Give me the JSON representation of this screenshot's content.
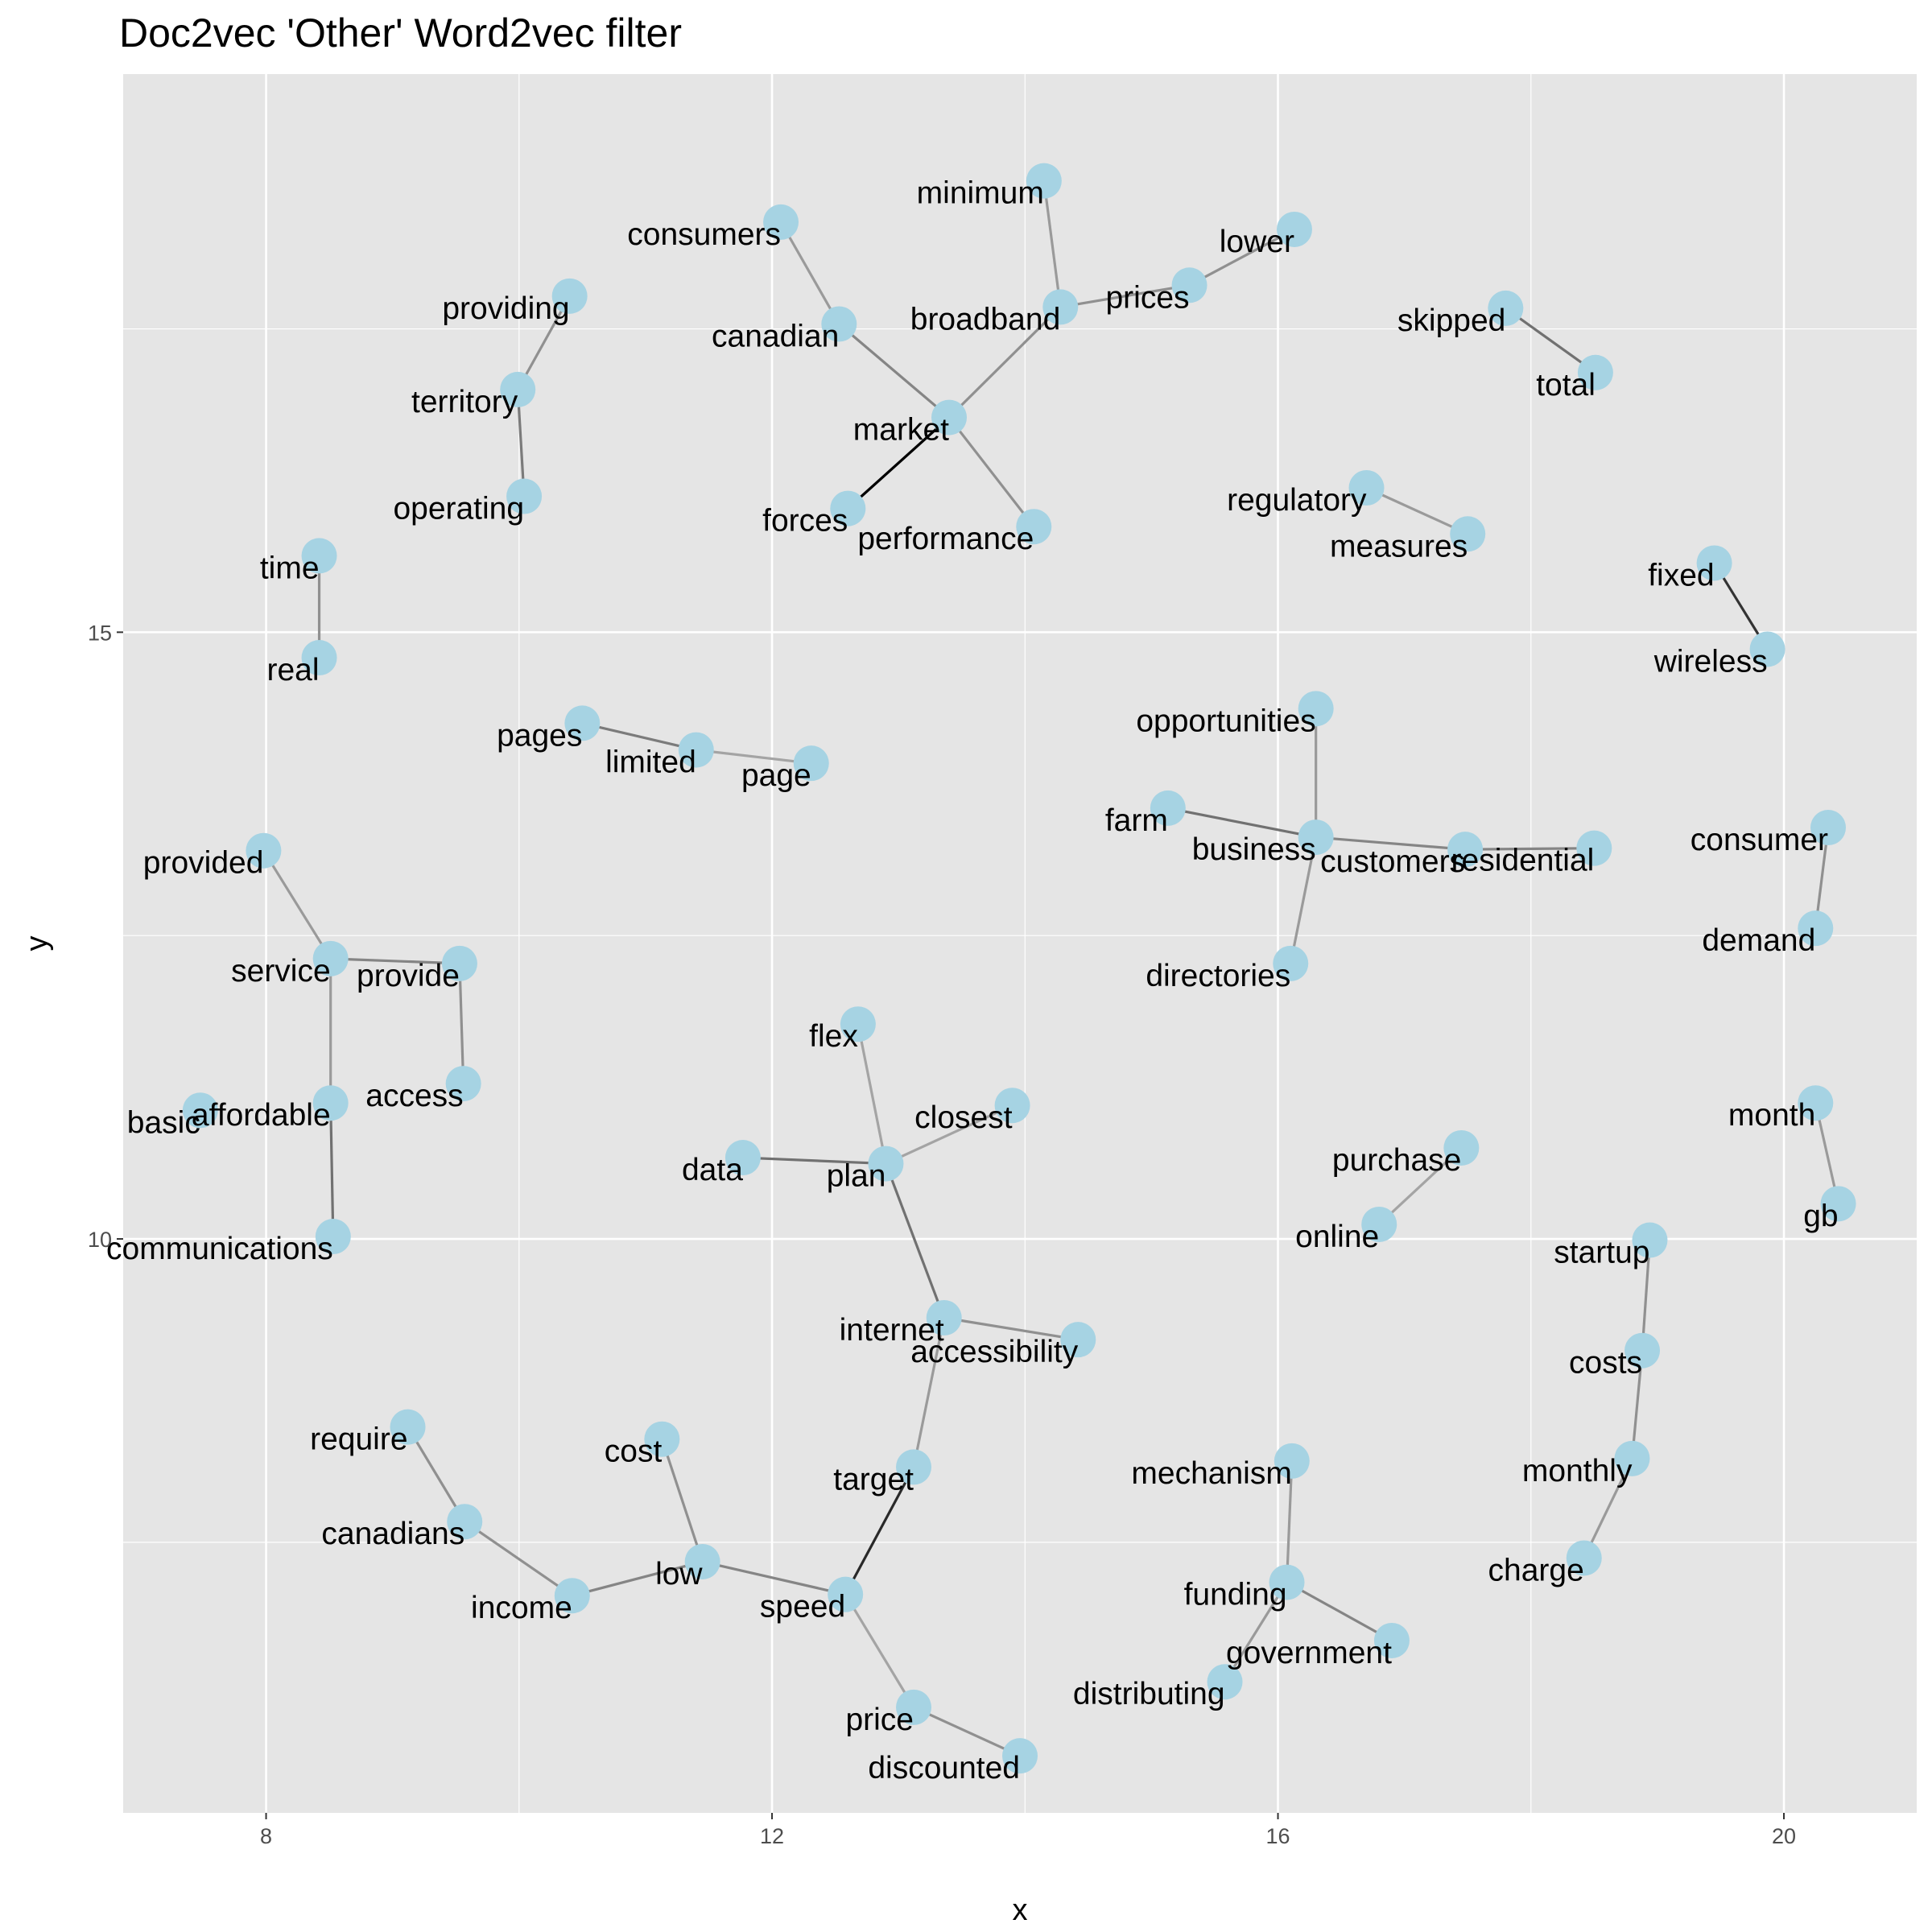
{
  "chart_data": {
    "type": "scatter",
    "title": "Doc2vec 'Other' Word2vec filter",
    "xlabel": "x",
    "ylabel": "y",
    "xlim": [
      6.87,
      21.05
    ],
    "ylim": [
      5.27,
      19.6
    ],
    "x_ticks": [
      8,
      12,
      16,
      20
    ],
    "x_tick_labels": [
      "8",
      "12",
      "16",
      "20"
    ],
    "y_ticks": [
      10,
      15
    ],
    "y_tick_labels": [
      "10",
      "15"
    ],
    "x_minor_ticks": [
      10,
      14,
      18
    ],
    "y_minor_ticks": [
      7.5,
      12.5,
      17.5
    ],
    "grid": true,
    "background": "#e5e5e5",
    "grid_color": "#ffffff",
    "point_color": "#a6d3e3",
    "points": [
      {
        "label": "consumers",
        "x": 12.07,
        "y": 18.38
      },
      {
        "label": "canadian",
        "x": 12.53,
        "y": 17.54
      },
      {
        "label": "market",
        "x": 13.4,
        "y": 16.77
      },
      {
        "label": "forces",
        "x": 12.6,
        "y": 16.02
      },
      {
        "label": "performance",
        "x": 14.07,
        "y": 15.87
      },
      {
        "label": "broadband",
        "x": 14.28,
        "y": 17.68
      },
      {
        "label": "minimum",
        "x": 14.15,
        "y": 18.72
      },
      {
        "label": "prices",
        "x": 15.3,
        "y": 17.86
      },
      {
        "label": "lower",
        "x": 16.13,
        "y": 18.32
      },
      {
        "label": "providing",
        "x": 10.4,
        "y": 17.77
      },
      {
        "label": "territory",
        "x": 9.99,
        "y": 17.0
      },
      {
        "label": "operating",
        "x": 10.04,
        "y": 16.12
      },
      {
        "label": "skipped",
        "x": 17.8,
        "y": 17.67
      },
      {
        "label": "total",
        "x": 18.51,
        "y": 17.14
      },
      {
        "label": "regulatory",
        "x": 16.7,
        "y": 16.19
      },
      {
        "label": "measures",
        "x": 17.5,
        "y": 15.81
      },
      {
        "label": "fixed",
        "x": 19.45,
        "y": 15.57
      },
      {
        "label": "wireless",
        "x": 19.87,
        "y": 14.86
      },
      {
        "label": "time",
        "x": 8.42,
        "y": 15.63
      },
      {
        "label": "real",
        "x": 8.42,
        "y": 14.79
      },
      {
        "label": "pages",
        "x": 10.5,
        "y": 14.25
      },
      {
        "label": "limited",
        "x": 11.4,
        "y": 14.03
      },
      {
        "label": "page",
        "x": 12.31,
        "y": 13.92
      },
      {
        "label": "opportunities",
        "x": 16.3,
        "y": 14.37
      },
      {
        "label": "farm",
        "x": 15.13,
        "y": 13.55
      },
      {
        "label": "business",
        "x": 16.3,
        "y": 13.31
      },
      {
        "label": "customers",
        "x": 17.48,
        "y": 13.21
      },
      {
        "label": "residential",
        "x": 18.5,
        "y": 13.22
      },
      {
        "label": "directories",
        "x": 16.1,
        "y": 12.27
      },
      {
        "label": "consumer",
        "x": 20.35,
        "y": 13.39
      },
      {
        "label": "demand",
        "x": 20.25,
        "y": 12.56
      },
      {
        "label": "provided",
        "x": 7.98,
        "y": 13.2
      },
      {
        "label": "service",
        "x": 8.51,
        "y": 12.31
      },
      {
        "label": "provide",
        "x": 9.53,
        "y": 12.27
      },
      {
        "label": "access",
        "x": 9.56,
        "y": 11.28
      },
      {
        "label": "affordable",
        "x": 8.51,
        "y": 11.12
      },
      {
        "label": "basic",
        "x": 7.48,
        "y": 11.06
      },
      {
        "label": "communications",
        "x": 8.53,
        "y": 10.02
      },
      {
        "label": "flex",
        "x": 12.68,
        "y": 11.77
      },
      {
        "label": "closest",
        "x": 13.9,
        "y": 11.1
      },
      {
        "label": "data",
        "x": 11.77,
        "y": 10.67
      },
      {
        "label": "plan",
        "x": 12.9,
        "y": 10.62
      },
      {
        "label": "month",
        "x": 20.25,
        "y": 11.12
      },
      {
        "label": "gb",
        "x": 20.43,
        "y": 10.29
      },
      {
        "label": "purchase",
        "x": 17.45,
        "y": 10.75
      },
      {
        "label": "online",
        "x": 16.8,
        "y": 10.12
      },
      {
        "label": "startup",
        "x": 18.94,
        "y": 9.99
      },
      {
        "label": "costs",
        "x": 18.88,
        "y": 9.08
      },
      {
        "label": "monthly",
        "x": 18.8,
        "y": 8.19
      },
      {
        "label": "charge",
        "x": 18.42,
        "y": 7.37
      },
      {
        "label": "internet",
        "x": 13.36,
        "y": 9.35
      },
      {
        "label": "accessibility",
        "x": 14.42,
        "y": 9.17
      },
      {
        "label": "target",
        "x": 13.12,
        "y": 8.12
      },
      {
        "label": "speed",
        "x": 12.58,
        "y": 7.07
      },
      {
        "label": "price",
        "x": 13.12,
        "y": 6.14
      },
      {
        "label": "discounted",
        "x": 13.96,
        "y": 5.74
      },
      {
        "label": "require",
        "x": 9.12,
        "y": 8.45
      },
      {
        "label": "canadians",
        "x": 9.57,
        "y": 7.67
      },
      {
        "label": "income",
        "x": 10.42,
        "y": 7.06
      },
      {
        "label": "low",
        "x": 11.45,
        "y": 7.34
      },
      {
        "label": "cost",
        "x": 11.13,
        "y": 8.35
      },
      {
        "label": "mechanism",
        "x": 16.11,
        "y": 8.17
      },
      {
        "label": "funding",
        "x": 16.07,
        "y": 7.17
      },
      {
        "label": "government",
        "x": 16.9,
        "y": 6.69
      },
      {
        "label": "distributing",
        "x": 15.58,
        "y": 6.35
      }
    ],
    "edges": [
      {
        "from": "consumers",
        "to": "canadian",
        "weight": 0.25
      },
      {
        "from": "canadian",
        "to": "market",
        "weight": 0.35
      },
      {
        "from": "market",
        "to": "forces",
        "weight": 1.0
      },
      {
        "from": "market",
        "to": "performance",
        "weight": 0.3
      },
      {
        "from": "market",
        "to": "broadband",
        "weight": 0.3
      },
      {
        "from": "broadband",
        "to": "minimum",
        "weight": 0.25
      },
      {
        "from": "broadband",
        "to": "prices",
        "weight": 0.3
      },
      {
        "from": "prices",
        "to": "lower",
        "weight": 0.3
      },
      {
        "from": "providing",
        "to": "territory",
        "weight": 0.3
      },
      {
        "from": "territory",
        "to": "operating",
        "weight": 0.4
      },
      {
        "from": "skipped",
        "to": "total",
        "weight": 0.45
      },
      {
        "from": "regulatory",
        "to": "measures",
        "weight": 0.25
      },
      {
        "from": "fixed",
        "to": "wireless",
        "weight": 0.75
      },
      {
        "from": "time",
        "to": "real",
        "weight": 0.3
      },
      {
        "from": "pages",
        "to": "limited",
        "weight": 0.4
      },
      {
        "from": "limited",
        "to": "page",
        "weight": 0.2
      },
      {
        "from": "opportunities",
        "to": "business",
        "weight": 0.25
      },
      {
        "from": "farm",
        "to": "business",
        "weight": 0.45
      },
      {
        "from": "business",
        "to": "customers",
        "weight": 0.35
      },
      {
        "from": "customers",
        "to": "residential",
        "weight": 0.35
      },
      {
        "from": "business",
        "to": "directories",
        "weight": 0.25
      },
      {
        "from": "consumer",
        "to": "demand",
        "weight": 0.3
      },
      {
        "from": "provided",
        "to": "service",
        "weight": 0.25
      },
      {
        "from": "service",
        "to": "provide",
        "weight": 0.35
      },
      {
        "from": "provide",
        "to": "access",
        "weight": 0.3
      },
      {
        "from": "service",
        "to": "affordable",
        "weight": 0.25
      },
      {
        "from": "affordable",
        "to": "communications",
        "weight": 0.45
      },
      {
        "from": "flex",
        "to": "plan",
        "weight": 0.2
      },
      {
        "from": "closest",
        "to": "plan",
        "weight": 0.2
      },
      {
        "from": "data",
        "to": "plan",
        "weight": 0.45
      },
      {
        "from": "plan",
        "to": "internet",
        "weight": 0.45
      },
      {
        "from": "month",
        "to": "gb",
        "weight": 0.25
      },
      {
        "from": "purchase",
        "to": "online",
        "weight": 0.2
      },
      {
        "from": "startup",
        "to": "costs",
        "weight": 0.3
      },
      {
        "from": "costs",
        "to": "monthly",
        "weight": 0.3
      },
      {
        "from": "monthly",
        "to": "charge",
        "weight": 0.25
      },
      {
        "from": "internet",
        "to": "accessibility",
        "weight": 0.3
      },
      {
        "from": "internet",
        "to": "target",
        "weight": 0.25
      },
      {
        "from": "target",
        "to": "speed",
        "weight": 0.8
      },
      {
        "from": "speed",
        "to": "price",
        "weight": 0.2
      },
      {
        "from": "price",
        "to": "discounted",
        "weight": 0.3
      },
      {
        "from": "require",
        "to": "canadians",
        "weight": 0.3
      },
      {
        "from": "canadians",
        "to": "income",
        "weight": 0.3
      },
      {
        "from": "income",
        "to": "low",
        "weight": 0.35
      },
      {
        "from": "low",
        "to": "cost",
        "weight": 0.3
      },
      {
        "from": "low",
        "to": "speed",
        "weight": 0.35
      },
      {
        "from": "mechanism",
        "to": "funding",
        "weight": 0.25
      },
      {
        "from": "funding",
        "to": "government",
        "weight": 0.35
      },
      {
        "from": "funding",
        "to": "distributing",
        "weight": 0.25
      }
    ]
  }
}
